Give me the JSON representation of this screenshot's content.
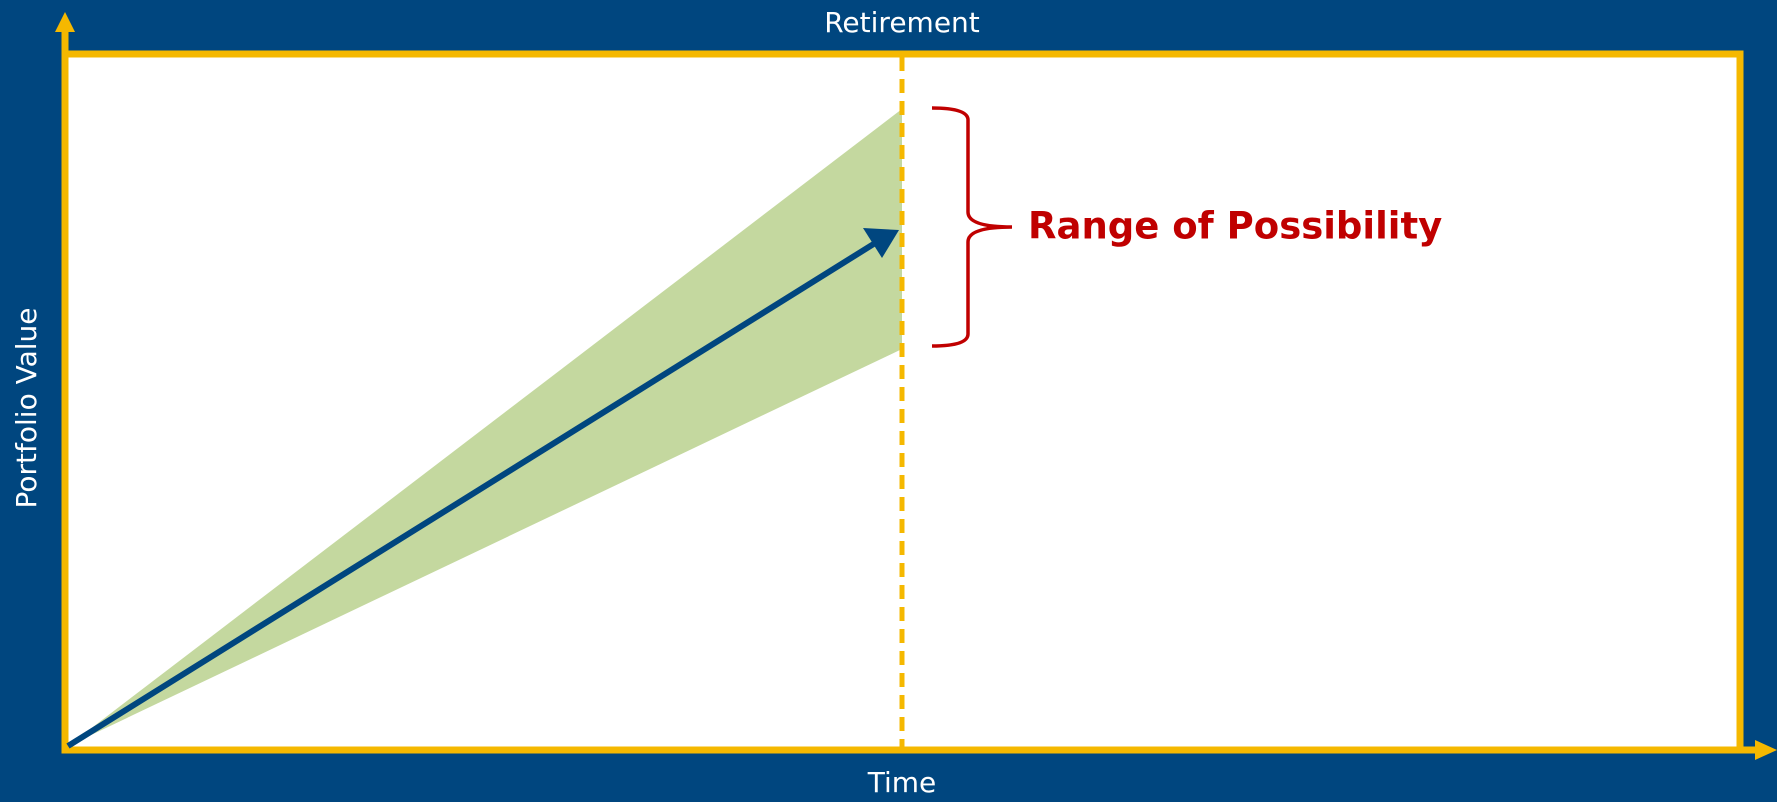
{
  "diagram": {
    "top_label": "Retirement",
    "y_axis_label": "Portfolio Value",
    "x_axis_label": "Time",
    "annotation": "Range of Possibility"
  }
}
